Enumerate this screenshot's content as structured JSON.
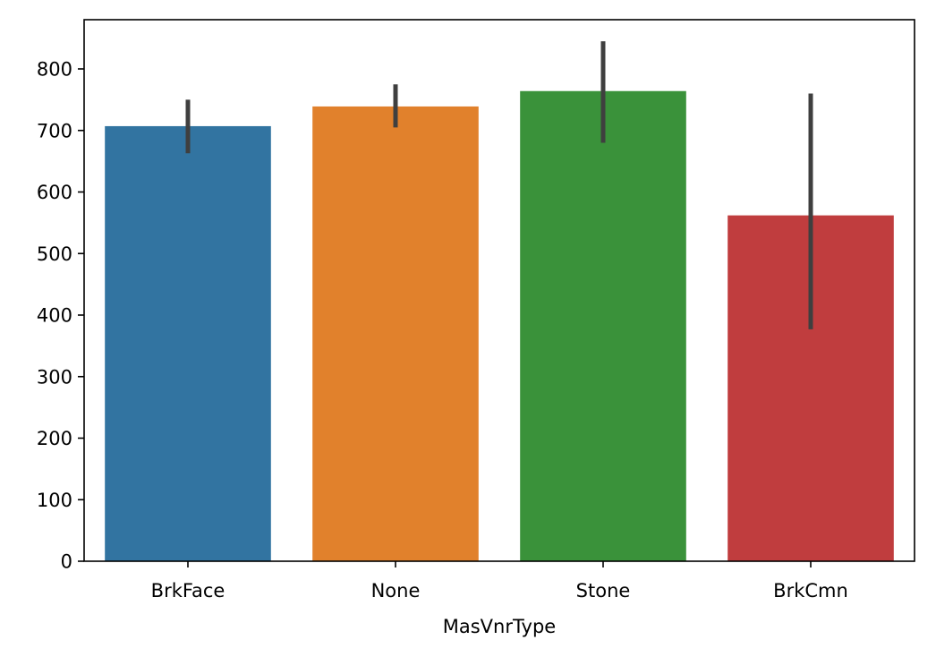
{
  "chart_data": {
    "type": "bar",
    "title": "",
    "xlabel": "MasVnrType",
    "ylabel": "",
    "categories": [
      "BrkFace",
      "None",
      "Stone",
      "BrkCmn"
    ],
    "values": [
      707,
      739,
      764,
      562
    ],
    "error_bars": [
      [
        663,
        750
      ],
      [
        705,
        775
      ],
      [
        680,
        845
      ],
      [
        377,
        760
      ]
    ],
    "colors": [
      "#3274a1",
      "#e1812c",
      "#3a923a",
      "#c03d3e"
    ],
    "error_bar_color": "#3f3f3f",
    "ylim": [
      0,
      880
    ],
    "yticks": [
      0,
      100,
      200,
      300,
      400,
      500,
      600,
      700,
      800
    ],
    "grid": false,
    "legend": "none"
  }
}
